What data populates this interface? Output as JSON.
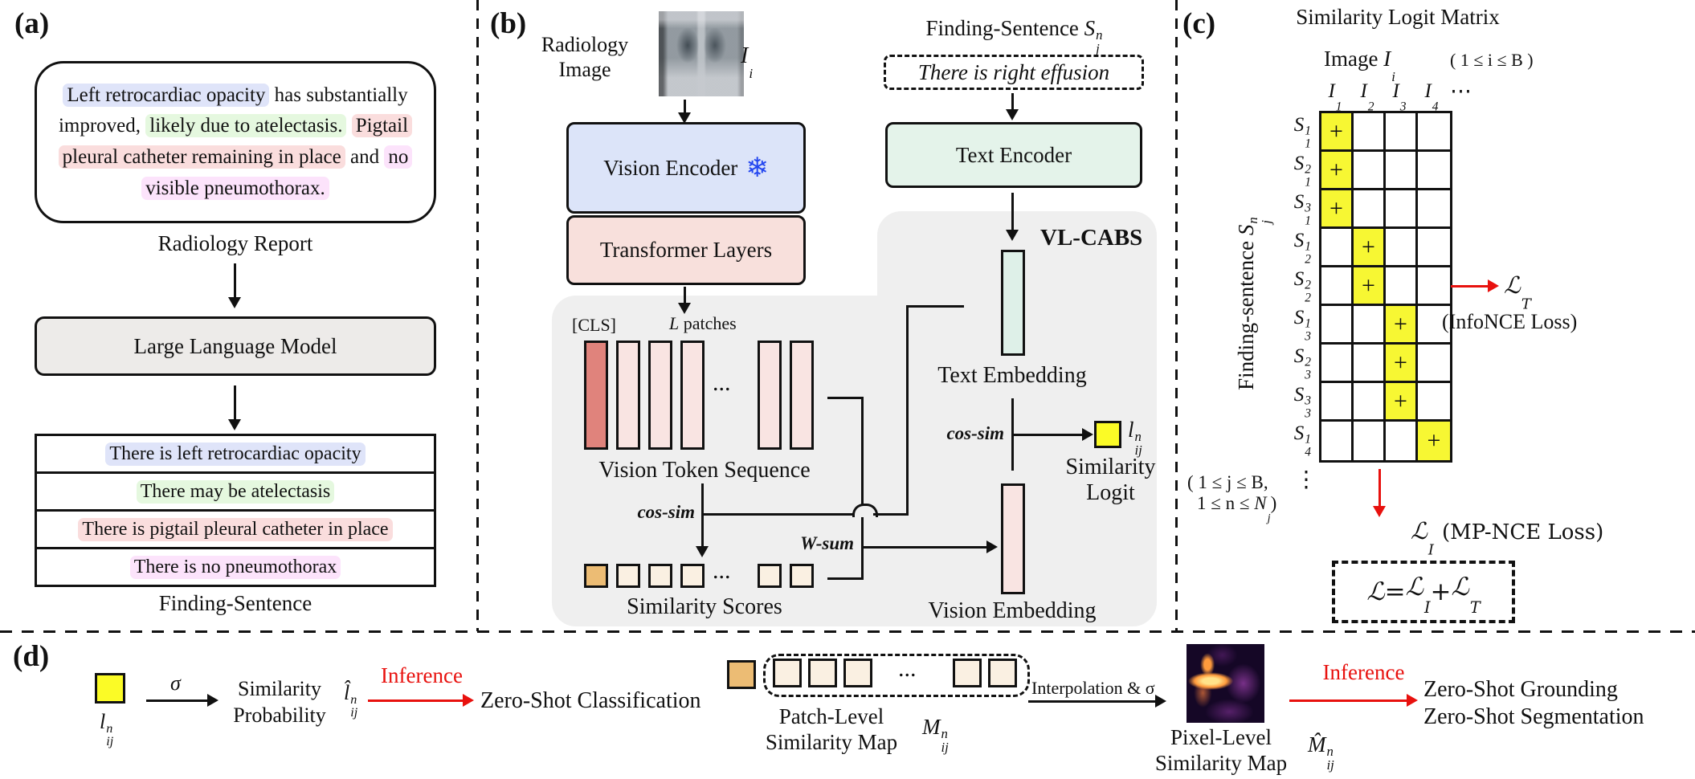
{
  "colors": {
    "accent_red": "#e8110e",
    "gray_region": "#efefef",
    "llm_box": "#edebe9",
    "vision_encoder_box": "#dce4f9",
    "transformer_box": "#f8e0dc",
    "text_encoder_box": "#e4f3ea",
    "cls_token": "#e0837c",
    "patch_token": "#f9e4e2",
    "score_first": "#ecbc74",
    "score_rest": "#faf0e2",
    "text_embedding": "#def0e8",
    "vision_embedding": "#f9e4e2",
    "logit_yellow": "#fbfb26",
    "matrix_positive": "#f7f733",
    "snowflake_blue": "#2447f0",
    "hl_blue": "#dfe4f9",
    "hl_green": "#e5f8df",
    "hl_red": "#fadddd",
    "hl_magenta": "#fce3fb"
  },
  "panel_a": {
    "tag": "(a)",
    "report": {
      "segments": [
        {
          "text": "Left retrocardiac opacity",
          "hl": "blue"
        },
        {
          "text": " has substantially improved, ",
          "hl": ""
        },
        {
          "text": "likely due to atelectasis.",
          "hl": "green"
        },
        {
          "text": " ",
          "hl": ""
        },
        {
          "text": "Pigtail pleural catheter remaining in place",
          "hl": "red"
        },
        {
          "text": " and ",
          "hl": ""
        },
        {
          "text": "no visible pneumothorax.",
          "hl": "magenta"
        }
      ],
      "caption": "Radiology Report"
    },
    "llm_label": "Large Language Model",
    "sentences": [
      {
        "text": "There is left retrocardiac opacity",
        "hl": "blue"
      },
      {
        "text": "There may be atelectasis",
        "hl": "green"
      },
      {
        "text": "There is pigtail pleural catheter in place",
        "hl": "red"
      },
      {
        "text": "There is no pneumothorax",
        "hl": "magenta"
      }
    ],
    "caption": "Finding-Sentence"
  },
  "panel_b": {
    "tag": "(b)",
    "radiology_image_line1": "Radiology",
    "radiology_image_line2": "Image",
    "image_symbol": {
      "base": "I",
      "sub": "i"
    },
    "vision_encoder_label": "Vision Encoder",
    "snowflake_icon": "❄",
    "transformer_label": "Transformer Layers",
    "finding_sentence_header": "Finding-Sentence",
    "sentence_symbol": {
      "base": "S",
      "sup": "n",
      "sub": "j"
    },
    "example_sentence": "There is right effusion",
    "text_encoder_label": "Text Encoder",
    "vl_cabs_label": "VL-CABS",
    "cls_label": "[CLS]",
    "patches_label": {
      "base": "L",
      "post": " patches"
    },
    "tokens": {
      "ellipsis": "..."
    },
    "vision_token_caption": "Vision Token Sequence",
    "cos_sim_label": "cos-sim",
    "w_sum_label": "W-sum",
    "scores": {
      "ellipsis": "..."
    },
    "similarity_scores_caption": "Similarity Scores",
    "text_embedding_caption": "Text Embedding",
    "cos_sim_label_2": "cos-sim",
    "logit_symbol": {
      "base": "l",
      "sup": "n",
      "sub": "ij"
    },
    "similarity_logit_line1": "Similarity",
    "similarity_logit_line2": "Logit",
    "vision_embedding_caption": "Vision Embedding"
  },
  "panel_c": {
    "tag": "(c)",
    "title": "Similarity Logit Matrix",
    "col_axis_label": "Image ",
    "col_axis_symbol": {
      "base": "I",
      "sub": "i"
    },
    "col_axis_range": "( 1 ≤ i ≤ B )",
    "columns": [
      {
        "base": "I",
        "sub": "1"
      },
      {
        "base": "I",
        "sub": "2"
      },
      {
        "base": "I",
        "sub": "3"
      },
      {
        "base": "I",
        "sub": "4"
      }
    ],
    "col_ellipsis": "⋯",
    "row_axis_label": "Finding-sentence ",
    "row_axis_symbol": {
      "base": "S",
      "sup": "n",
      "sub": "j"
    },
    "matrix": {
      "num_cols": 4,
      "plus": "+",
      "rows": [
        {
          "label": {
            "base": "S",
            "sup": "1",
            "sub": "1"
          },
          "positive_col": 0
        },
        {
          "label": {
            "base": "S",
            "sup": "2",
            "sub": "1"
          },
          "positive_col": 0
        },
        {
          "label": {
            "base": "S",
            "sup": "3",
            "sub": "1"
          },
          "positive_col": 0
        },
        {
          "label": {
            "base": "S",
            "sup": "1",
            "sub": "2"
          },
          "positive_col": 1
        },
        {
          "label": {
            "base": "S",
            "sup": "2",
            "sub": "2"
          },
          "positive_col": 1
        },
        {
          "label": {
            "base": "S",
            "sup": "1",
            "sub": "3"
          },
          "positive_col": 2
        },
        {
          "label": {
            "base": "S",
            "sup": "2",
            "sub": "3"
          },
          "positive_col": 2
        },
        {
          "label": {
            "base": "S",
            "sup": "3",
            "sub": "3"
          },
          "positive_col": 2
        },
        {
          "label": {
            "base": "S",
            "sup": "1",
            "sub": "4"
          },
          "positive_col": 3
        }
      ]
    },
    "vdots": "⋮",
    "row_range_line1": "( 1 ≤ j ≤ B,",
    "row_range_line2": {
      "pre": "1 ≤ n ≤ ",
      "base": "N",
      "sub": "j",
      "post": ")"
    },
    "lt_symbol": {
      "base": "ℒ",
      "sub": "T"
    },
    "lt_loss_label": "(InfoNCE Loss)",
    "li_symbol": {
      "base": "ℒ",
      "sub": "I"
    },
    "li_loss_label": "(MP-NCE Loss)",
    "loss_total": {
      "term0": {
        "base": "ℒ"
      },
      "eq": " = ",
      "term1": {
        "base": "ℒ",
        "sub": "I"
      },
      "plus": " + ",
      "term2": {
        "base": "ℒ",
        "sub": "T"
      }
    }
  },
  "panel_d": {
    "tag": "(d)",
    "logit_symbol": {
      "base": "l",
      "sup": "n",
      "sub": "ij"
    },
    "sigma_label": "σ",
    "similarity_probability_line1": "Similarity",
    "similarity_probability_line2": "Probability",
    "probability_symbol": {
      "base": "l̂",
      "sup": "n",
      "sub": "ij"
    },
    "inference_label_1": "Inference",
    "zero_shot_classification": "Zero-Shot Classification",
    "patch": {
      "ellipsis": "..."
    },
    "patch_caption_line1": "Patch-Level",
    "patch_caption_line2": "Similarity Map",
    "patch_symbol": {
      "base": "M",
      "sup": "n",
      "sub": "ij"
    },
    "interpolation_label": "Interpolation & σ",
    "pixel_caption_line1": "Pixel-Level",
    "pixel_caption_line2": "Similarity Map",
    "pixel_symbol": {
      "base": "M̂",
      "sup": "n",
      "sub": "ij"
    },
    "inference_label_2": "Inference",
    "zero_shot_grounding": "Zero-Shot Grounding",
    "zero_shot_segmentation": "Zero-Shot Segmentation"
  }
}
